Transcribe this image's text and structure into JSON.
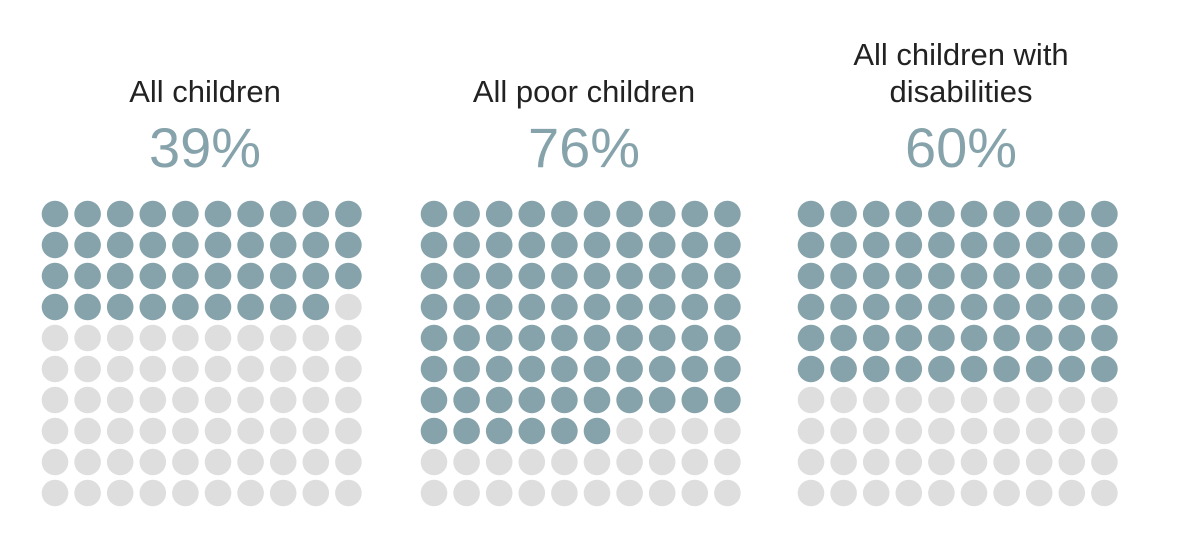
{
  "colors": {
    "filled": "#86a3ab",
    "empty": "#dedede",
    "label": "#222222"
  },
  "chart_data": {
    "type": "waffle",
    "grid": {
      "rows": 10,
      "cols": 10
    },
    "panels": [
      {
        "label": "All children",
        "value_label": "39%",
        "value": 39
      },
      {
        "label": "All poor children",
        "value_label": "76%",
        "value": 76
      },
      {
        "label": "All children with\ndisabilities",
        "value_label": "60%",
        "value": 60
      }
    ]
  }
}
